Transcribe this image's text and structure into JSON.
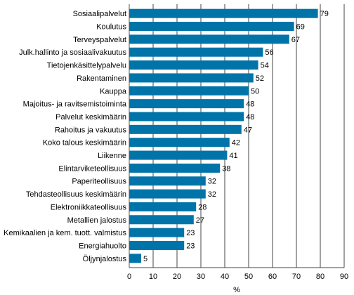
{
  "chart_data": {
    "type": "bar",
    "orientation": "horizontal",
    "title": "",
    "xlabel": "%",
    "ylabel": "",
    "xlim": [
      0,
      90
    ],
    "xticks": [
      0,
      10,
      20,
      30,
      40,
      50,
      60,
      70,
      80,
      90
    ],
    "grid": "vertical",
    "bar_color": "#0074a8",
    "categories": [
      "Sosiaalipalvelut",
      "Koulutus",
      "Terveyspalvelut",
      "Julk.hallinto ja sosiaalivakuutus",
      "Tietojenkäsittelypalvelu",
      "Rakentaminen",
      "Kauppa",
      "Majoitus- ja ravitsemistoiminta",
      "Palvelut keskimäärin",
      "Rahoitus ja vakuutus",
      "Koko talous keskimäärin",
      "Liikenne",
      "Elintarviketeollisuus",
      "Paperiteollisuus",
      "Tehdasteollisuus keskimäärin",
      "Elektroniikkateollisuus",
      "Metallien jalostus",
      "Kemikaalien ja kem. tuott. valmistus",
      "Energiahuolto",
      "Öljynjalostus"
    ],
    "values": [
      79,
      69,
      67,
      56,
      54,
      52,
      50,
      48,
      48,
      47,
      42,
      41,
      38,
      32,
      32,
      28,
      27,
      23,
      23,
      5
    ]
  }
}
